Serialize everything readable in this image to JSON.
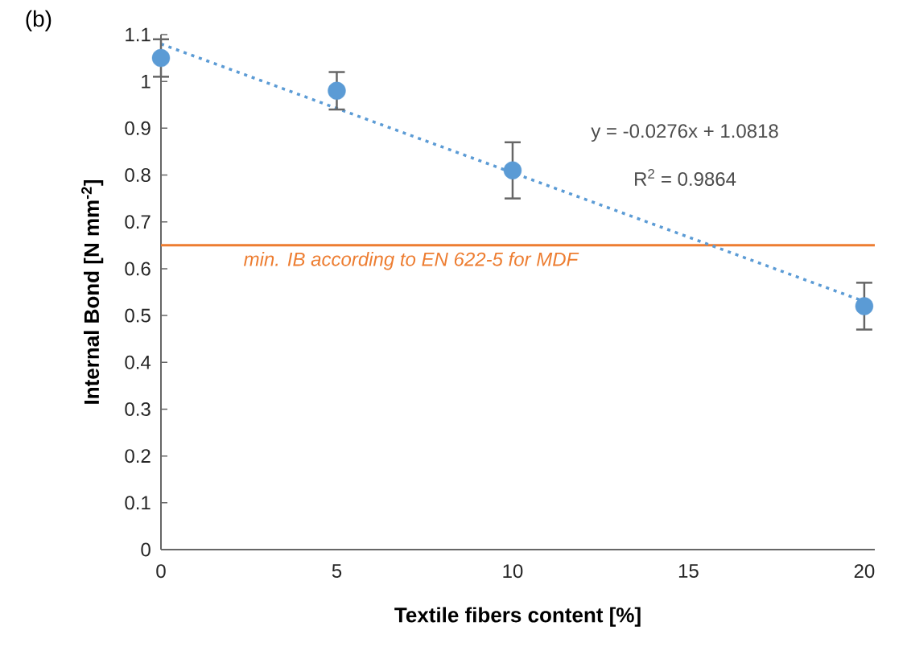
{
  "chart_data": {
    "type": "scatter",
    "xlabel": "Textile fibers content [%]",
    "ylabel": "Internal Bond [N mm$^{-2}$]",
    "x": [
      0,
      5,
      10,
      20
    ],
    "series": [
      {
        "color": "#5b9bd5",
        "values": [
          1.05,
          0.98,
          0.81,
          0.52
        ],
        "errors": [
          0.04,
          0.04,
          0.06,
          0.05
        ],
        "marker": "circle"
      },
      {
        "type": "line",
        "color": "#5b9bd5",
        "x": [
          0,
          20
        ],
        "values": [
          1.08,
          0.53
        ],
        "line_style": "dotted",
        "marker": "none"
      }
    ],
    "xlim": [
      0,
      20.3
    ],
    "xticks": [
      0,
      5,
      10,
      15,
      20
    ],
    "ylim": [
      0,
      1.1
    ],
    "yticks": [
      0,
      0.1,
      0.2,
      0.3,
      0.4,
      0.5,
      0.6,
      0.7,
      0.8,
      0.9,
      1,
      1.1
    ],
    "ref_lines": [
      {
        "axis": "y",
        "value": 0.65,
        "label": "min. IB according to EN 622-5 for MDF",
        "color": "#ed7d31"
      }
    ],
    "annotations": [
      "(b)",
      "y = -0.0276x + 1.0818",
      "R$^{2}$ = 0.9864"
    ],
    "grid": false
  }
}
